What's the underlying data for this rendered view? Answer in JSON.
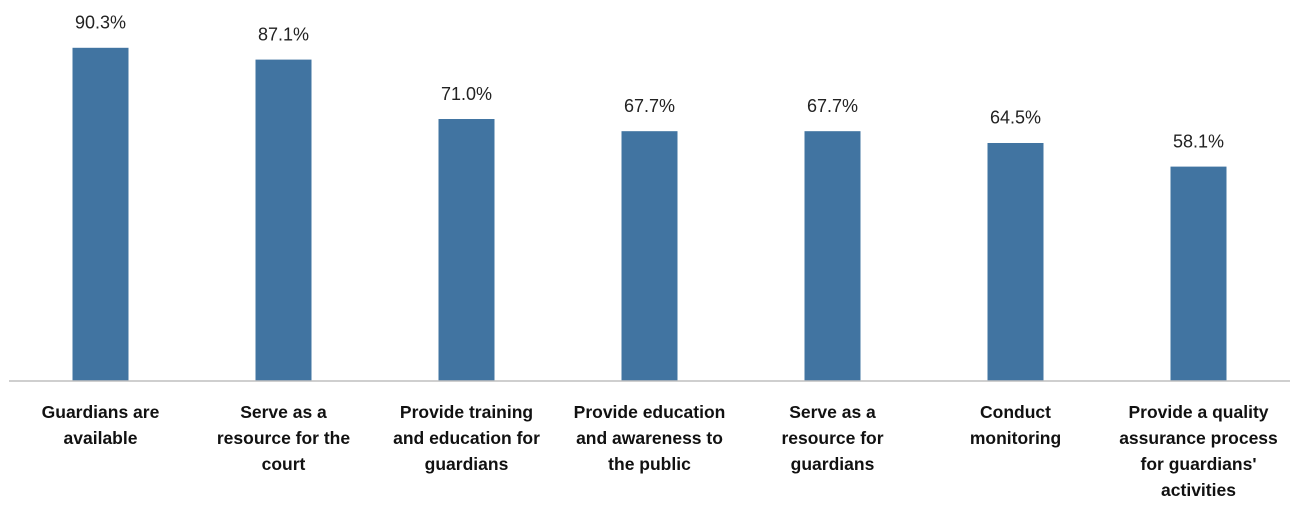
{
  "chart_data": {
    "type": "bar",
    "categories": [
      "Guardians are available",
      "Serve as a resource for the court",
      "Provide training and education for guardians",
      "Provide education and awareness to the public",
      "Serve as a resource for guardians",
      "Conduct monitoring",
      "Provide a quality assurance process for guardians' activities"
    ],
    "values": [
      90.3,
      87.1,
      71.0,
      67.7,
      67.7,
      64.5,
      58.1
    ],
    "value_labels": [
      "90.3%",
      "87.1%",
      "71.0%",
      "67.7%",
      "67.7%",
      "64.5%",
      "58.1%"
    ],
    "color": "#4174a1",
    "ylim": [
      0,
      100
    ],
    "grid": false
  }
}
